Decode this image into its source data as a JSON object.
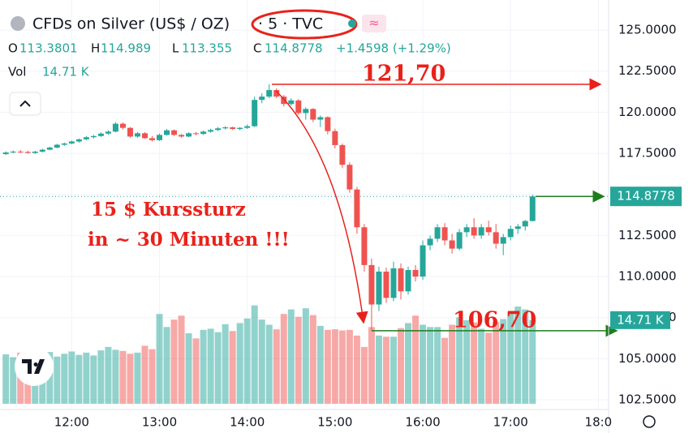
{
  "chart_data": {
    "type": "candlestick",
    "header": {
      "symbol": "CFDs on Silver (US$ / OZ)",
      "interval": "· 5 · TVC",
      "flag": "≈",
      "o_label": "O",
      "h_label": "H",
      "l_label": "L",
      "c_label": "C",
      "change": "+1.4598 (+1.29%)",
      "vol_label": "Vol",
      "vol_value": "14.71 K"
    },
    "x": [
      "11:15",
      "11:20",
      "11:25",
      "11:30",
      "11:35",
      "11:40",
      "11:45",
      "11:50",
      "11:55",
      "12:00",
      "12:05",
      "12:10",
      "12:15",
      "12:20",
      "12:25",
      "12:30",
      "12:35",
      "12:40",
      "12:45",
      "12:50",
      "12:55",
      "13:00",
      "13:05",
      "13:10",
      "13:15",
      "13:20",
      "13:25",
      "13:30",
      "13:35",
      "13:40",
      "13:45",
      "13:50",
      "13:55",
      "14:00",
      "14:05",
      "14:10",
      "14:15",
      "14:20",
      "14:25",
      "14:30",
      "14:35",
      "14:40",
      "14:45",
      "14:50",
      "14:55",
      "15:00",
      "15:05",
      "15:10",
      "15:15",
      "15:20",
      "15:25",
      "15:30",
      "15:35",
      "15:40",
      "15:45",
      "15:50",
      "15:55",
      "16:00",
      "16:05",
      "16:10",
      "16:15",
      "16:20",
      "16:25",
      "16:30",
      "16:35",
      "16:40",
      "16:45",
      "16:50",
      "16:55",
      "17:00",
      "17:05",
      "17:10",
      "17:15"
    ],
    "open": [
      117.45,
      117.55,
      117.6,
      117.58,
      117.52,
      117.6,
      117.72,
      117.85,
      118.02,
      118.1,
      118.22,
      118.35,
      118.48,
      118.55,
      118.7,
      118.82,
      119.3,
      119.05,
      118.52,
      118.72,
      118.42,
      118.3,
      118.62,
      118.9,
      118.62,
      118.52,
      118.72,
      118.68,
      118.82,
      118.92,
      119.02,
      119.08,
      118.98,
      119.05,
      119.15,
      120.75,
      120.95,
      121.35,
      120.95,
      120.5,
      120.72,
      119.95,
      120.2,
      119.55,
      119.7,
      118.85,
      118.0,
      116.8,
      115.3,
      113.0,
      110.7,
      108.3,
      110.3,
      108.7,
      110.5,
      109.1,
      110.4,
      110.0,
      111.9,
      112.3,
      113.0,
      112.2,
      111.7,
      112.7,
      113.0,
      112.5,
      113.0,
      112.7,
      112.0,
      112.4,
      112.9,
      113.05,
      113.3801
    ],
    "high": [
      117.62,
      117.68,
      117.7,
      117.66,
      117.65,
      117.78,
      117.9,
      118.08,
      118.15,
      118.28,
      118.4,
      118.55,
      118.62,
      118.78,
      118.9,
      119.4,
      119.38,
      119.1,
      118.8,
      118.78,
      118.55,
      118.7,
      118.98,
      118.95,
      118.68,
      118.78,
      118.8,
      118.88,
      119.0,
      119.1,
      119.15,
      119.12,
      119.1,
      119.25,
      120.95,
      121.15,
      121.7,
      121.45,
      121.05,
      120.85,
      120.8,
      120.3,
      120.25,
      119.8,
      119.75,
      119.0,
      118.1,
      116.95,
      115.45,
      113.2,
      111.1,
      110.6,
      110.55,
      110.9,
      110.8,
      110.6,
      110.7,
      112.2,
      112.5,
      113.2,
      113.25,
      112.6,
      112.9,
      113.2,
      113.55,
      113.2,
      113.4,
      113.2,
      112.6,
      113.1,
      113.2,
      113.45,
      114.989
    ],
    "low": [
      117.4,
      117.5,
      117.52,
      117.48,
      117.47,
      117.55,
      117.68,
      117.8,
      117.95,
      118.05,
      118.15,
      118.3,
      118.4,
      118.5,
      118.62,
      118.78,
      118.95,
      118.45,
      118.45,
      118.38,
      118.22,
      118.25,
      118.58,
      118.55,
      118.45,
      118.48,
      118.6,
      118.62,
      118.75,
      118.85,
      118.95,
      118.92,
      118.9,
      118.98,
      119.1,
      120.55,
      120.85,
      120.85,
      120.35,
      120.4,
      119.85,
      119.55,
      119.4,
      119.1,
      118.65,
      117.8,
      116.6,
      115.1,
      112.6,
      110.3,
      106.7,
      107.9,
      108.4,
      108.5,
      108.6,
      108.9,
      109.7,
      109.8,
      111.6,
      112.1,
      111.9,
      111.4,
      111.6,
      112.4,
      112.3,
      112.3,
      112.5,
      111.7,
      111.3,
      112.2,
      112.6,
      112.8,
      113.355
    ],
    "close": [
      117.55,
      117.6,
      117.58,
      117.52,
      117.6,
      117.72,
      117.85,
      118.02,
      118.1,
      118.22,
      118.35,
      118.48,
      118.55,
      118.7,
      118.82,
      119.3,
      119.05,
      118.52,
      118.72,
      118.42,
      118.3,
      118.62,
      118.9,
      118.62,
      118.52,
      118.72,
      118.68,
      118.82,
      118.92,
      119.02,
      119.08,
      118.98,
      119.05,
      119.15,
      120.75,
      120.95,
      121.35,
      120.95,
      120.5,
      120.72,
      119.95,
      120.2,
      119.55,
      119.7,
      118.85,
      118.0,
      116.8,
      115.3,
      113.0,
      110.7,
      108.3,
      110.3,
      108.7,
      110.5,
      109.1,
      110.4,
      110.0,
      111.9,
      112.3,
      113.0,
      112.2,
      111.7,
      112.7,
      113.0,
      112.5,
      113.0,
      112.7,
      112.0,
      112.4,
      112.9,
      113.05,
      113.38,
      114.8778
    ],
    "volume": [
      8.7,
      8.2,
      9.0,
      8.5,
      7.9,
      8.5,
      9.1,
      8.3,
      8.8,
      9.2,
      8.6,
      9.0,
      8.5,
      9.4,
      10.0,
      9.5,
      9.3,
      8.8,
      9.0,
      10.2,
      9.6,
      15.8,
      13.5,
      14.8,
      15.5,
      12.4,
      11.5,
      13.0,
      13.2,
      12.6,
      14.0,
      12.8,
      14.2,
      15.0,
      17.3,
      14.8,
      13.9,
      13.1,
      15.8,
      16.6,
      15.3,
      16.8,
      15.6,
      13.7,
      13.0,
      13.1,
      12.9,
      13.0,
      12.0,
      10.0,
      13.5,
      12.0,
      11.8,
      11.8,
      13.3,
      14.2,
      15.5,
      13.9,
      13.5,
      13.5,
      11.6,
      13.9,
      15.2,
      14.7,
      14.3,
      13.2,
      12.5,
      14.4,
      14.9,
      16.2,
      17.1,
      16.6,
      14.71
    ],
    "up_color": "#26a69a",
    "down_color": "#ef5350",
    "xlim": [
      "11:11",
      "18:07"
    ],
    "xticks": [
      "12:00",
      "13:00",
      "14:00",
      "15:00",
      "16:00",
      "17:00",
      "18:0"
    ],
    "ylim": [
      101.91,
      126.83
    ],
    "yticks": [
      {
        "value": 102.5,
        "label": "102.5000"
      },
      {
        "value": 105,
        "label": "105.0000"
      },
      {
        "value": 107.5,
        "label": "107.5000"
      },
      {
        "value": 110,
        "label": "110.0000"
      },
      {
        "value": 112.5,
        "label": "112.5000"
      },
      {
        "value": 115,
        "label": "115.0000"
      },
      {
        "value": 117.5,
        "label": "117.5000"
      },
      {
        "value": 120,
        "label": "120.0000"
      },
      {
        "value": 122.5,
        "label": "122.5000"
      },
      {
        "value": 125,
        "label": "125.0000"
      }
    ],
    "y2lim": [
      0,
      71
    ],
    "grid": true,
    "annotations": [
      {
        "text": "121,70",
        "value": 121.7
      },
      {
        "text": "106,70",
        "value": 106.7
      },
      {
        "text": "15 $ Kurssturz"
      },
      {
        "text": "in ~ 30 Minuten !!!"
      }
    ]
  }
}
